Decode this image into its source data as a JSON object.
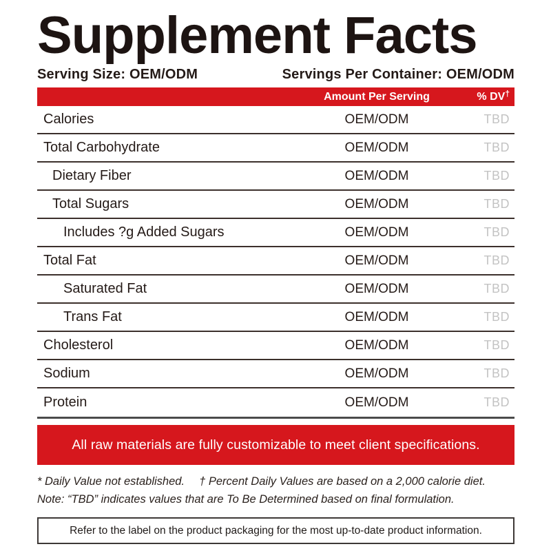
{
  "title": "Supplement Facts",
  "serving_info": {
    "serving_size": "Serving Size: OEM/ODM",
    "servings_per_container": "Servings Per Container: OEM/ODM"
  },
  "table": {
    "header": {
      "amount_label": "Amount Per Serving",
      "dv_label": "% DV",
      "dv_mark": "†"
    },
    "rows": [
      {
        "name": "Calories",
        "indent": 0,
        "amount": "OEM/ODM",
        "dv": "TBD"
      },
      {
        "name": "Total Carbohydrate",
        "indent": 0,
        "amount": "OEM/ODM",
        "dv": "TBD"
      },
      {
        "name": "Dietary Fiber",
        "indent": 1,
        "amount": "OEM/ODM",
        "dv": "TBD"
      },
      {
        "name": "Total Sugars",
        "indent": 1,
        "amount": "OEM/ODM",
        "dv": "TBD"
      },
      {
        "name": "Includes ?g Added Sugars",
        "indent": 2,
        "amount": "OEM/ODM",
        "dv": "TBD"
      },
      {
        "name": "Total Fat",
        "indent": 0,
        "amount": "OEM/ODM",
        "dv": "TBD"
      },
      {
        "name": "Saturated Fat",
        "indent": 2,
        "amount": "OEM/ODM",
        "dv": "TBD"
      },
      {
        "name": "Trans Fat",
        "indent": 2,
        "amount": "OEM/ODM",
        "dv": "TBD"
      },
      {
        "name": "Cholesterol",
        "indent": 0,
        "amount": "OEM/ODM",
        "dv": "TBD"
      },
      {
        "name": "Sodium",
        "indent": 0,
        "amount": "OEM/ODM",
        "dv": "TBD"
      },
      {
        "name": "Protein",
        "indent": 0,
        "amount": "OEM/ODM",
        "dv": "TBD"
      }
    ]
  },
  "banner": {
    "text": "All raw materials are fully customizable to meet client specifications."
  },
  "footnotes": {
    "line1": "* Daily Value not established.  † Percent Daily Values are based on a 2,000 calorie diet.",
    "line2": "Note: “TBD” indicates values that are To Be Determined based on final formulation."
  },
  "info_box": {
    "text": "Refer to the label on the product packaging for the most up-to-date product information."
  },
  "colors": {
    "accent_red": "#d6171d",
    "tbd_gray": "#c3c3c3",
    "text_dark": "#241a17",
    "rule_dark": "#3b2f2b",
    "rule_heavy": "#4a4a4a"
  }
}
